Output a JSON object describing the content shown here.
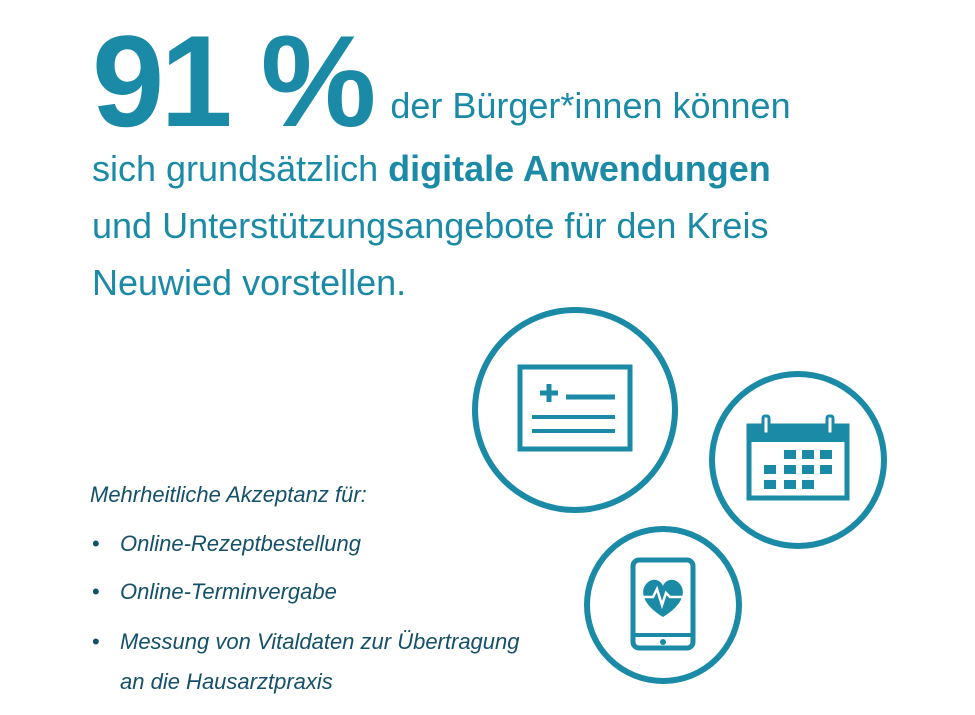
{
  "headline": {
    "percent": "91 %",
    "line1_rest": "der Bürger*innen können",
    "part2_prefix": "sich grundsätzlich ",
    "part2_bold": "digitale Anwendungen",
    "part3": "und Unterstützungsangebote für den Kreis",
    "part4": "Neuwied vorstellen."
  },
  "acceptance": {
    "title": "Mehrheitliche Akzeptanz für:",
    "bullet": "•",
    "items": [
      "Online-Rezeptbestellung",
      "Online-Terminvergabe",
      "Messung von Vitaldaten zur Übertragung an die Hausarztpraxis"
    ]
  },
  "icons": {
    "prescription": "prescription-icon",
    "calendar": "calendar-icon",
    "tablet": "tablet-heart-icon"
  },
  "colors": {
    "accent": "#1a8aa6",
    "text_dark": "#14506a",
    "background": "#ffffff"
  }
}
